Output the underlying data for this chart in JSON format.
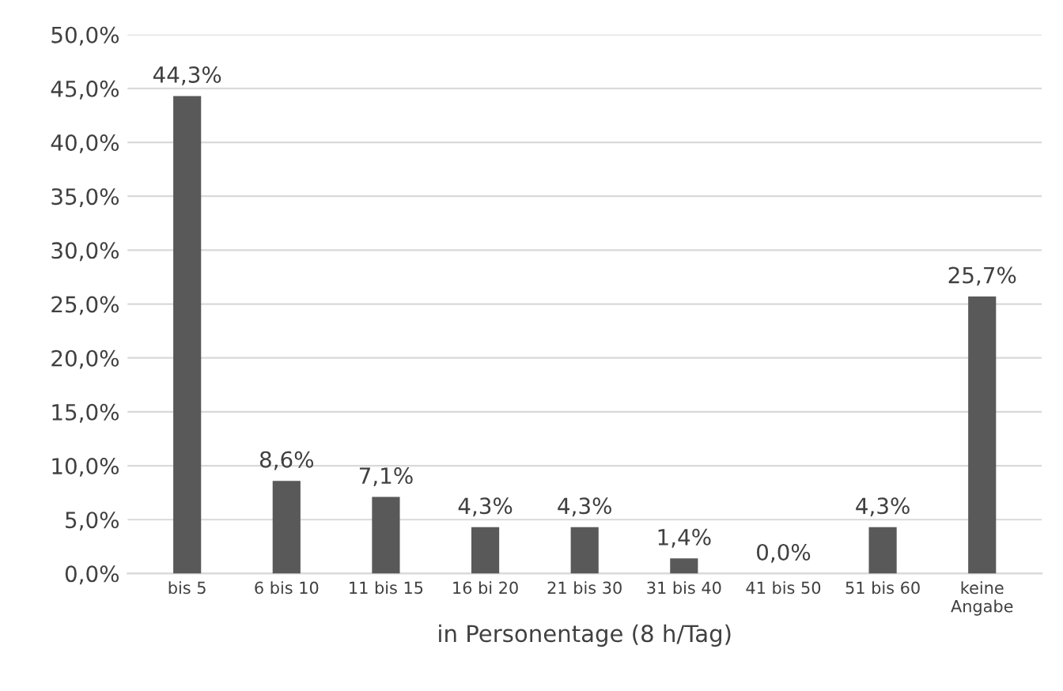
{
  "chart_data": {
    "type": "bar",
    "xlabel": "in Personentage (8 h/Tag)",
    "categories": [
      "bis 5",
      "6 bis 10",
      "11 bis 15",
      "16 bi 20",
      "21 bis 30",
      "31 bis 40",
      "41 bis 50",
      "51 bis 60",
      "keine\nAngabe"
    ],
    "values": [
      44.3,
      8.6,
      7.1,
      4.3,
      4.3,
      1.4,
      0.0,
      4.3,
      25.7
    ],
    "value_labels": [
      "44,3%",
      "8,6%",
      "7,1%",
      "4,3%",
      "4,3%",
      "1,4%",
      "0,0%",
      "4,3%",
      "25,7%"
    ],
    "color": "#595959",
    "ylim": [
      0,
      50
    ],
    "yticks": [
      {
        "value": 0,
        "label": "0,0%"
      },
      {
        "value": 5,
        "label": "5,0%"
      },
      {
        "value": 10,
        "label": "10,0%"
      },
      {
        "value": 15,
        "label": "15,0%"
      },
      {
        "value": 20,
        "label": "20,0%"
      },
      {
        "value": 25,
        "label": "25,0%"
      },
      {
        "value": 30,
        "label": "30,0%"
      },
      {
        "value": 35,
        "label": "35,0%"
      },
      {
        "value": 40,
        "label": "40,0%"
      },
      {
        "value": 45,
        "label": "45,0%"
      },
      {
        "value": 50,
        "label": "50,0%"
      }
    ],
    "grid": "y",
    "legend": false
  }
}
